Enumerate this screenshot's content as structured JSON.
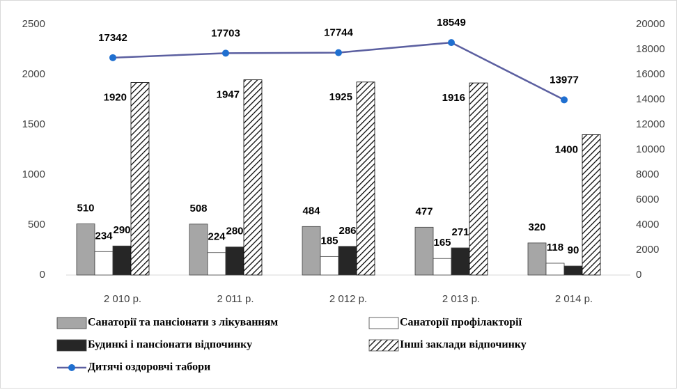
{
  "chart_data": {
    "type": "bar",
    "categories": [
      "2 010 р.",
      "2 011 р.",
      "2 012 р.",
      "2 013 р.",
      "2 014 р."
    ],
    "series": [
      {
        "name": "Санаторії та пансіонати з лікуванням",
        "color": "#a6a6a6",
        "values": [
          510,
          508,
          484,
          477,
          320
        ]
      },
      {
        "name": "Санаторії профілакторії",
        "color": "#ffffff",
        "values": [
          234,
          224,
          185,
          165,
          118
        ]
      },
      {
        "name": "Будинкі і пансіонати відпочинку",
        "color": "#262626",
        "values": [
          290,
          280,
          286,
          271,
          90
        ]
      },
      {
        "name": "Інші заклади відпочинку",
        "color": "#000000",
        "pattern": "diagonal",
        "values": [
          1920,
          1947,
          1925,
          1916,
          1400
        ]
      },
      {
        "name": "Дитячі оздоровчі табори",
        "type": "line",
        "axis": "y2",
        "color": "#5b5fa0",
        "marker_color": "#1f6fd0",
        "values": [
          17342,
          17703,
          17744,
          18549,
          13977
        ]
      }
    ],
    "ylim": [
      0,
      2500
    ],
    "yticks": [
      0,
      500,
      1000,
      1500,
      2000,
      2500
    ],
    "y2lim": [
      0,
      20000
    ],
    "y2ticks": [
      0,
      2000,
      4000,
      6000,
      8000,
      10000,
      12000,
      14000,
      16000,
      18000,
      20000
    ],
    "grid": false
  }
}
